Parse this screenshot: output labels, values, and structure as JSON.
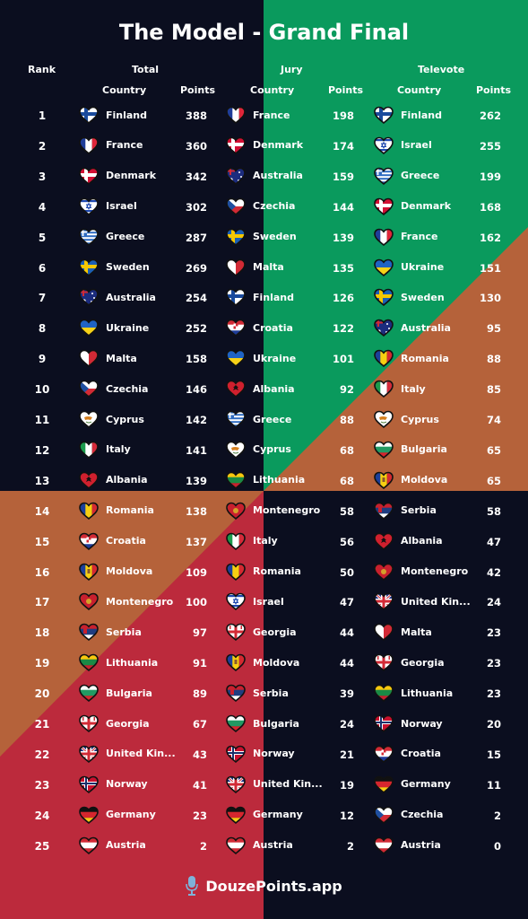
{
  "title": "The Model - Grand Final",
  "headers": {
    "rank": "Rank",
    "total": "Total",
    "jury": "Jury",
    "televote": "Televote",
    "country": "Country",
    "points": "Points"
  },
  "colors": {
    "dark": "#0b0e1f",
    "green": "#0a9a5d",
    "orange": "#b5623a",
    "red": "#bc2a3c"
  },
  "rows": [
    {
      "rank": "1",
      "total": {
        "country": "Finland",
        "points": "388"
      },
      "jury": {
        "country": "France",
        "points": "198"
      },
      "tele": {
        "country": "Finland",
        "points": "262"
      }
    },
    {
      "rank": "2",
      "total": {
        "country": "France",
        "points": "360"
      },
      "jury": {
        "country": "Denmark",
        "points": "174"
      },
      "tele": {
        "country": "Israel",
        "points": "255"
      }
    },
    {
      "rank": "3",
      "total": {
        "country": "Denmark",
        "points": "342"
      },
      "jury": {
        "country": "Australia",
        "points": "159"
      },
      "tele": {
        "country": "Greece",
        "points": "199"
      }
    },
    {
      "rank": "4",
      "total": {
        "country": "Israel",
        "points": "302"
      },
      "jury": {
        "country": "Czechia",
        "points": "144"
      },
      "tele": {
        "country": "Denmark",
        "points": "168"
      }
    },
    {
      "rank": "5",
      "total": {
        "country": "Greece",
        "points": "287"
      },
      "jury": {
        "country": "Sweden",
        "points": "139"
      },
      "tele": {
        "country": "France",
        "points": "162"
      }
    },
    {
      "rank": "6",
      "total": {
        "country": "Sweden",
        "points": "269"
      },
      "jury": {
        "country": "Malta",
        "points": "135"
      },
      "tele": {
        "country": "Ukraine",
        "points": "151"
      }
    },
    {
      "rank": "7",
      "total": {
        "country": "Australia",
        "points": "254"
      },
      "jury": {
        "country": "Finland",
        "points": "126"
      },
      "tele": {
        "country": "Sweden",
        "points": "130"
      }
    },
    {
      "rank": "8",
      "total": {
        "country": "Ukraine",
        "points": "252"
      },
      "jury": {
        "country": "Croatia",
        "points": "122"
      },
      "tele": {
        "country": "Australia",
        "points": "95"
      }
    },
    {
      "rank": "9",
      "total": {
        "country": "Malta",
        "points": "158"
      },
      "jury": {
        "country": "Ukraine",
        "points": "101"
      },
      "tele": {
        "country": "Romania",
        "points": "88"
      }
    },
    {
      "rank": "10",
      "total": {
        "country": "Czechia",
        "points": "146"
      },
      "jury": {
        "country": "Albania",
        "points": "92"
      },
      "tele": {
        "country": "Italy",
        "points": "85"
      }
    },
    {
      "rank": "11",
      "total": {
        "country": "Cyprus",
        "points": "142"
      },
      "jury": {
        "country": "Greece",
        "points": "88"
      },
      "tele": {
        "country": "Cyprus",
        "points": "74"
      }
    },
    {
      "rank": "12",
      "total": {
        "country": "Italy",
        "points": "141"
      },
      "jury": {
        "country": "Cyprus",
        "points": "68"
      },
      "tele": {
        "country": "Bulgaria",
        "points": "65"
      }
    },
    {
      "rank": "13",
      "total": {
        "country": "Albania",
        "points": "139"
      },
      "jury": {
        "country": "Lithuania",
        "points": "68"
      },
      "tele": {
        "country": "Moldova",
        "points": "65"
      }
    },
    {
      "rank": "14",
      "total": {
        "country": "Romania",
        "points": "138"
      },
      "jury": {
        "country": "Montenegro",
        "points": "58"
      },
      "tele": {
        "country": "Serbia",
        "points": "58"
      }
    },
    {
      "rank": "15",
      "total": {
        "country": "Croatia",
        "points": "137"
      },
      "jury": {
        "country": "Italy",
        "points": "56"
      },
      "tele": {
        "country": "Albania",
        "points": "47"
      }
    },
    {
      "rank": "16",
      "total": {
        "country": "Moldova",
        "points": "109"
      },
      "jury": {
        "country": "Romania",
        "points": "50"
      },
      "tele": {
        "country": "Montenegro",
        "points": "42"
      }
    },
    {
      "rank": "17",
      "total": {
        "country": "Montenegro",
        "points": "100"
      },
      "jury": {
        "country": "Israel",
        "points": "47"
      },
      "tele": {
        "country": "United Kin...",
        "points": "24"
      }
    },
    {
      "rank": "18",
      "total": {
        "country": "Serbia",
        "points": "97"
      },
      "jury": {
        "country": "Georgia",
        "points": "44"
      },
      "tele": {
        "country": "Malta",
        "points": "23"
      }
    },
    {
      "rank": "19",
      "total": {
        "country": "Lithuania",
        "points": "91"
      },
      "jury": {
        "country": "Moldova",
        "points": "44"
      },
      "tele": {
        "country": "Georgia",
        "points": "23"
      }
    },
    {
      "rank": "20",
      "total": {
        "country": "Bulgaria",
        "points": "89"
      },
      "jury": {
        "country": "Serbia",
        "points": "39"
      },
      "tele": {
        "country": "Lithuania",
        "points": "23"
      }
    },
    {
      "rank": "21",
      "total": {
        "country": "Georgia",
        "points": "67"
      },
      "jury": {
        "country": "Bulgaria",
        "points": "24"
      },
      "tele": {
        "country": "Norway",
        "points": "20"
      }
    },
    {
      "rank": "22",
      "total": {
        "country": "United Kin...",
        "points": "43"
      },
      "jury": {
        "country": "Norway",
        "points": "21"
      },
      "tele": {
        "country": "Croatia",
        "points": "15"
      }
    },
    {
      "rank": "23",
      "total": {
        "country": "Norway",
        "points": "41"
      },
      "jury": {
        "country": "United Kin...",
        "points": "19"
      },
      "tele": {
        "country": "Germany",
        "points": "11"
      }
    },
    {
      "rank": "24",
      "total": {
        "country": "Germany",
        "points": "23"
      },
      "jury": {
        "country": "Germany",
        "points": "12"
      },
      "tele": {
        "country": "Czechia",
        "points": "2"
      }
    },
    {
      "rank": "25",
      "total": {
        "country": "Austria",
        "points": "2"
      },
      "jury": {
        "country": "Austria",
        "points": "2"
      },
      "tele": {
        "country": "Austria",
        "points": "0"
      }
    }
  ],
  "footer": {
    "brand": "DouzePoints.app",
    "icon": "microphone-icon"
  }
}
